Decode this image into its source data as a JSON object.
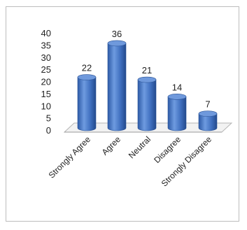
{
  "chart_data": {
    "type": "bar",
    "categories": [
      "Strongly Agree",
      "Agree",
      "Neutral",
      "Disagree",
      "Strongly Disagree"
    ],
    "values": [
      22,
      36,
      21,
      14,
      7
    ],
    "yticks": [
      0,
      5,
      10,
      15,
      20,
      25,
      30,
      35,
      40
    ],
    "ylim": [
      0,
      40
    ],
    "grid": false,
    "legend": "none",
    "bar_color": "#3f6fbf",
    "bar_top_color": "#6f99dc",
    "bar_edge_color": "#2c5496"
  }
}
